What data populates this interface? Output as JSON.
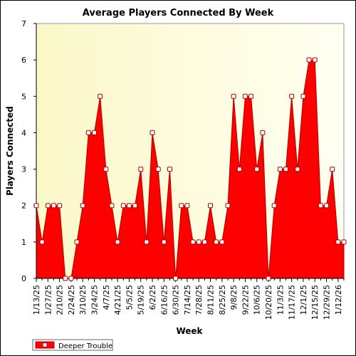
{
  "chart_data": {
    "type": "area",
    "title": "Average Players Connected By Week",
    "xlabel": "Week",
    "ylabel": "Players Connected",
    "ylim": [
      0,
      7
    ],
    "yticks": [
      0,
      1,
      2,
      3,
      4,
      5,
      6,
      7
    ],
    "grid": false,
    "legend_position": "bottom-left",
    "plot_background": "#fffde0",
    "x_tick_labels": [
      "1/13/25",
      "1/27/25",
      "2/10/25",
      "2/24/25",
      "3/10/25",
      "3/24/25",
      "4/7/25",
      "4/21/25",
      "5/5/25",
      "5/19/25",
      "6/2/25",
      "6/16/25",
      "6/30/25",
      "7/14/25",
      "7/28/25",
      "8/11/25",
      "8/25/25",
      "9/8/25",
      "9/22/25",
      "10/6/25",
      "10/20/25",
      "11/3/25",
      "11/17/25",
      "12/1/25",
      "12/15/25",
      "12/29/25",
      "1/12/26"
    ],
    "x": [
      "1/13/25",
      "1/20/25",
      "1/27/25",
      "2/3/25",
      "2/10/25",
      "2/17/25",
      "2/24/25",
      "3/3/25",
      "3/10/25",
      "3/17/25",
      "3/24/25",
      "3/31/25",
      "4/7/25",
      "4/14/25",
      "4/21/25",
      "4/28/25",
      "5/5/25",
      "5/12/25",
      "5/19/25",
      "5/26/25",
      "6/2/25",
      "6/9/25",
      "6/16/25",
      "6/23/25",
      "6/30/25",
      "7/7/25",
      "7/14/25",
      "7/21/25",
      "7/28/25",
      "8/4/25",
      "8/11/25",
      "8/18/25",
      "8/25/25",
      "9/1/25",
      "9/8/25",
      "9/15/25",
      "9/22/25",
      "9/29/25",
      "10/6/25",
      "10/13/25",
      "10/20/25",
      "10/27/25",
      "11/3/25",
      "11/10/25",
      "11/17/25",
      "11/24/25",
      "12/1/25",
      "12/8/25",
      "12/15/25",
      "12/22/25",
      "12/29/25",
      "1/5/26",
      "1/12/26",
      "1/19/26"
    ],
    "series": [
      {
        "name": "Deeper Trouble",
        "color": "#ff0000",
        "values": [
          2,
          1,
          2,
          2,
          2,
          0,
          0,
          1,
          2,
          4,
          4,
          5,
          3,
          2,
          1,
          2,
          2,
          2,
          3,
          1,
          4,
          3,
          1,
          3,
          0,
          2,
          2,
          1,
          1,
          1,
          2,
          1,
          1,
          2,
          5,
          3,
          5,
          5,
          3,
          4,
          0,
          2,
          3,
          3,
          5,
          3,
          5,
          6,
          6,
          2,
          2,
          3,
          1,
          1
        ]
      }
    ]
  }
}
